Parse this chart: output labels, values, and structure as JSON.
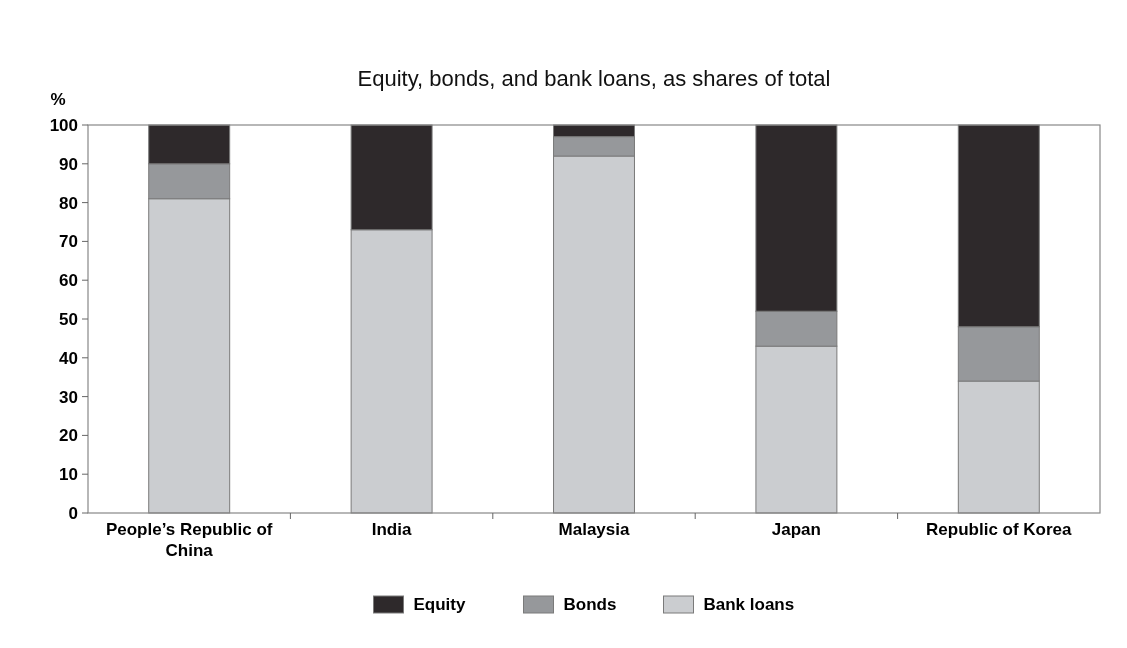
{
  "chart_data": {
    "type": "bar",
    "title": "Equity, bonds, and bank loans, as shares of total",
    "ylabel": "%",
    "categories": [
      "People’s Republic of China",
      "India",
      "Malaysia",
      "Japan",
      "Republic of Korea"
    ],
    "stacked": true,
    "series": [
      {
        "name": "Bank loans",
        "color": "#cbcdd0",
        "values": [
          81,
          73,
          92,
          43,
          34
        ]
      },
      {
        "name": "Bonds",
        "color": "#96989b",
        "values": [
          9,
          0,
          5,
          9,
          14
        ]
      },
      {
        "name": "Equity",
        "color": "#2e292b",
        "values": [
          10,
          27,
          3,
          48,
          52
        ]
      }
    ],
    "ylim": [
      0,
      100
    ],
    "yticks": [
      0,
      10,
      20,
      30,
      40,
      50,
      60,
      70,
      80,
      90,
      100
    ],
    "legend": "bottom",
    "grid": false
  }
}
